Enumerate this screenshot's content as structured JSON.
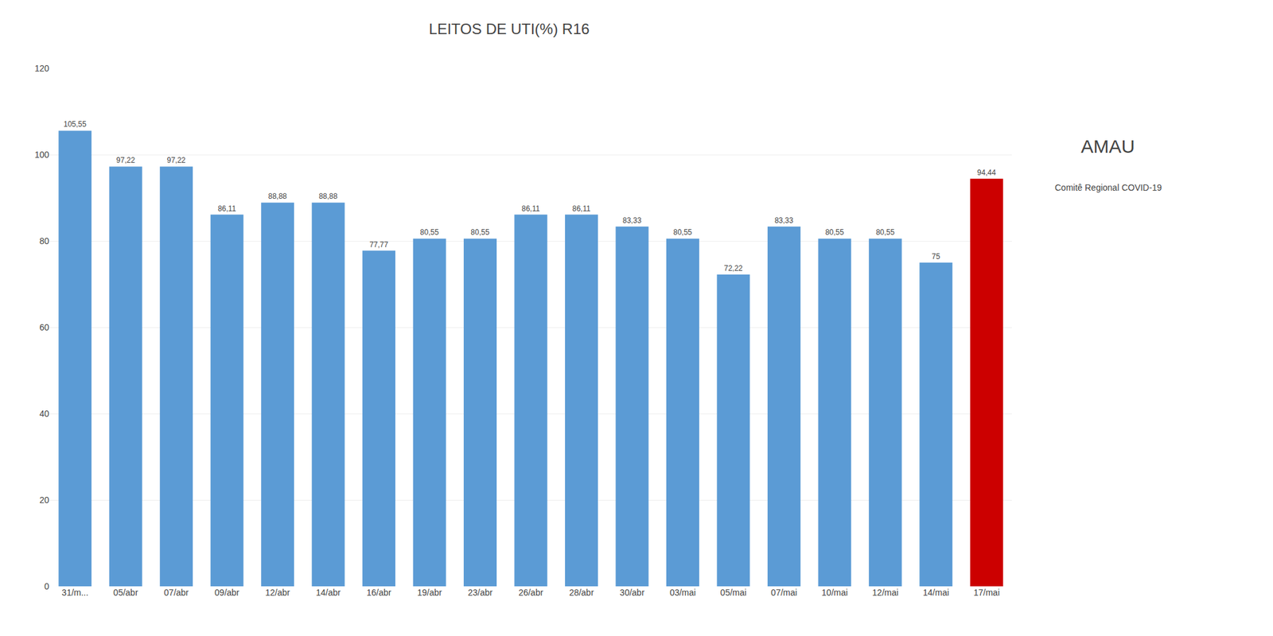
{
  "chart_data": {
    "type": "bar",
    "title": "LEITOS DE UTI(%) R16",
    "categories": [
      "31/m...",
      "05/abr",
      "07/abr",
      "09/abr",
      "12/abr",
      "14/abr",
      "16/abr",
      "19/abr",
      "23/abr",
      "26/abr",
      "28/abr",
      "30/abr",
      "03/mai",
      "05/mai",
      "07/mai",
      "10/mai",
      "12/mai",
      "14/mai",
      "17/mai"
    ],
    "values": [
      105.55,
      97.22,
      97.22,
      86.11,
      88.88,
      88.88,
      77.77,
      80.55,
      80.55,
      86.11,
      86.11,
      83.33,
      80.55,
      72.22,
      83.33,
      80.55,
      80.55,
      75.0,
      94.44
    ],
    "value_labels": [
      "105,55",
      "97,22",
      "97,22",
      "86,11",
      "88,88",
      "88,88",
      "77,77",
      "80,55",
      "80,55",
      "86,11",
      "86,11",
      "83,33",
      "80,55",
      "72,22",
      "83,33",
      "80,55",
      "80,55",
      "75",
      "94,44"
    ],
    "data_labels": true,
    "colors": [
      "#5b9bd5",
      "#5b9bd5",
      "#5b9bd5",
      "#5b9bd5",
      "#5b9bd5",
      "#5b9bd5",
      "#5b9bd5",
      "#5b9bd5",
      "#5b9bd5",
      "#5b9bd5",
      "#5b9bd5",
      "#5b9bd5",
      "#5b9bd5",
      "#5b9bd5",
      "#5b9bd5",
      "#5b9bd5",
      "#5b9bd5",
      "#5b9bd5",
      "#cc0000"
    ],
    "ylim": [
      0,
      120
    ],
    "yticks": [
      0,
      20,
      40,
      60,
      80,
      100,
      120
    ],
    "grid": true,
    "annotations": [
      "AMAU",
      "Comitê Regional COVID-19"
    ]
  }
}
